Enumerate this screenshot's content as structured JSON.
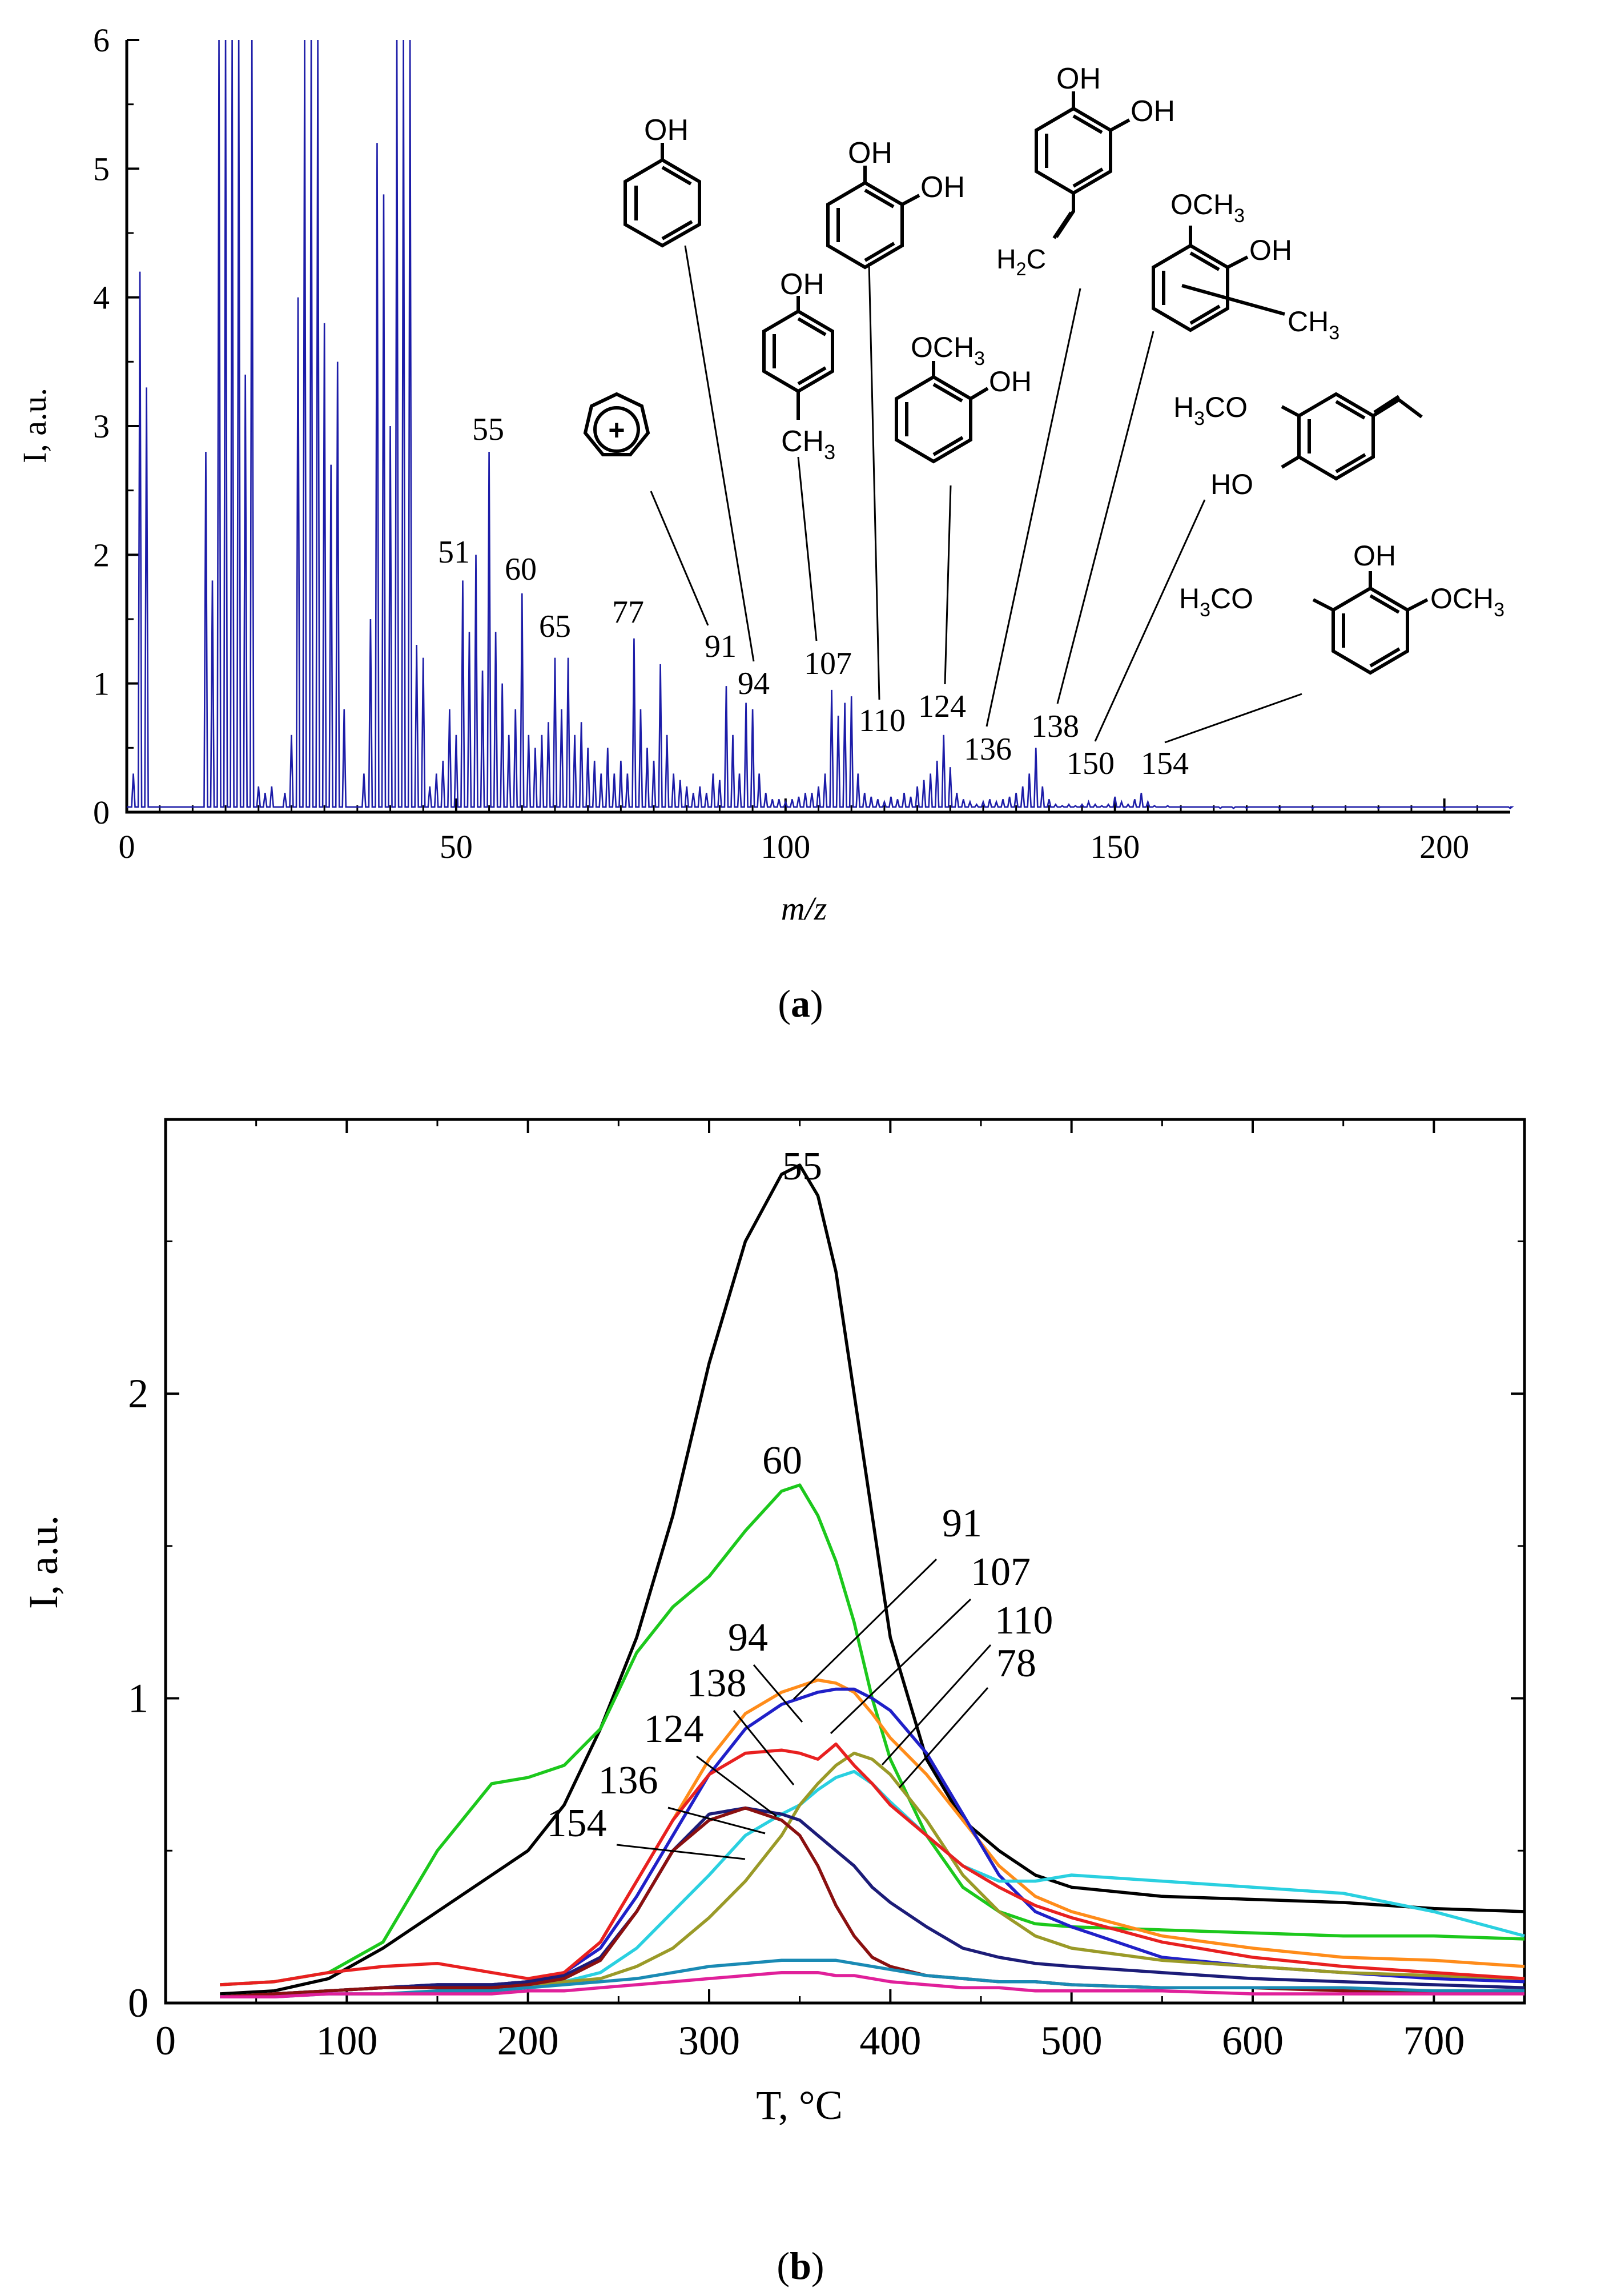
{
  "chart_data": [
    {
      "type": "line",
      "panel_label": "a",
      "xlabel": "m/z",
      "ylabel": "I, a.u.",
      "xlim": [
        0,
        210
      ],
      "ylim": [
        0,
        6
      ],
      "xticks": [
        "0",
        "50",
        "100",
        "150",
        "200"
      ],
      "yticks": [
        "0",
        "1",
        "2",
        "3",
        "4",
        "5",
        "6"
      ],
      "color": "#1c1ca8",
      "series": [
        {
          "name": "mass spectrum",
          "x": [
            1,
            2,
            3,
            12,
            13,
            14,
            15,
            16,
            17,
            18,
            19,
            20,
            21,
            22,
            24,
            25,
            26,
            27,
            28,
            29,
            30,
            31,
            32,
            33,
            36,
            37,
            38,
            39,
            40,
            41,
            42,
            43,
            44,
            45,
            46,
            47,
            48,
            49,
            50,
            51,
            52,
            53,
            54,
            55,
            56,
            57,
            58,
            59,
            60,
            61,
            62,
            63,
            64,
            65,
            66,
            67,
            68,
            69,
            70,
            71,
            72,
            73,
            74,
            75,
            76,
            77,
            78,
            79,
            80,
            81,
            82,
            83,
            84,
            85,
            86,
            87,
            88,
            89,
            90,
            91,
            92,
            93,
            94,
            95,
            96,
            97,
            98,
            99,
            100,
            101,
            102,
            103,
            104,
            105,
            106,
            107,
            108,
            109,
            110,
            111,
            112,
            113,
            114,
            115,
            116,
            117,
            118,
            119,
            120,
            121,
            122,
            123,
            124,
            125,
            126,
            127,
            128,
            129,
            130,
            131,
            132,
            133,
            134,
            135,
            136,
            137,
            138,
            139,
            140,
            141,
            142,
            143,
            144,
            145,
            146,
            147,
            148,
            149,
            150,
            151,
            152,
            153,
            154,
            155,
            156,
            157,
            158,
            159,
            160,
            162,
            164,
            166,
            168,
            170,
            175,
            180,
            190,
            200,
            210
          ],
          "y": [
            0.3,
            4.2,
            3.3,
            2.8,
            1.8,
            6.0,
            6.0,
            6.0,
            6.0,
            3.4,
            6.0,
            0.2,
            0.15,
            0.2,
            0.15,
            0.6,
            4.0,
            6.0,
            6.0,
            6.0,
            3.8,
            2.7,
            3.5,
            0.8,
            0.3,
            1.5,
            5.2,
            4.8,
            3.0,
            6.0,
            6.0,
            6.0,
            1.3,
            1.2,
            0.2,
            0.3,
            0.4,
            0.8,
            0.6,
            1.8,
            1.4,
            2.0,
            1.1,
            2.8,
            1.4,
            1.0,
            0.6,
            0.8,
            1.7,
            0.6,
            0.5,
            0.6,
            0.7,
            1.2,
            0.8,
            1.2,
            0.6,
            0.7,
            0.5,
            0.4,
            0.3,
            0.5,
            0.3,
            0.4,
            0.3,
            1.35,
            0.8,
            0.5,
            0.4,
            1.15,
            0.6,
            0.3,
            0.25,
            0.2,
            0.15,
            0.2,
            0.15,
            0.3,
            0.25,
            0.98,
            0.6,
            0.3,
            0.85,
            0.8,
            0.3,
            0.15,
            0.1,
            0.1,
            0.08,
            0.1,
            0.12,
            0.15,
            0.15,
            0.2,
            0.3,
            0.95,
            0.75,
            0.85,
            0.9,
            0.3,
            0.15,
            0.12,
            0.1,
            0.08,
            0.12,
            0.1,
            0.15,
            0.12,
            0.2,
            0.25,
            0.3,
            0.4,
            0.6,
            0.35,
            0.15,
            0.1,
            0.08,
            0.06,
            0.08,
            0.1,
            0.08,
            0.1,
            0.12,
            0.15,
            0.2,
            0.3,
            0.5,
            0.2,
            0.1,
            0.06,
            0.05,
            0.06,
            0.05,
            0.06,
            0.08,
            0.06,
            0.05,
            0.06,
            0.12,
            0.08,
            0.06,
            0.1,
            0.15,
            0.08,
            0.05,
            0.04,
            0.05,
            0.04,
            0.04,
            0.04,
            0.04,
            0.03,
            0.03,
            0.03,
            0.03,
            0.03,
            0.03,
            0.03,
            0.03
          ]
        }
      ],
      "peak_labels": [
        "55",
        "51",
        "60",
        "65",
        "77",
        "91",
        "94",
        "107",
        "110",
        "124",
        "136",
        "138",
        "150",
        "154"
      ],
      "structure_text": [
        "OH",
        "OCH",
        "3",
        "H",
        "2",
        "C",
        "CO",
        "HO"
      ]
    },
    {
      "type": "line",
      "panel_label": "b",
      "xlabel": "T, °C",
      "ylabel": "I, a.u.",
      "xlim": [
        0,
        750
      ],
      "ylim": [
        0,
        2.9
      ],
      "xticks": [
        "0",
        "100",
        "200",
        "300",
        "400",
        "500",
        "600",
        "700"
      ],
      "yticks": [
        "0",
        "1",
        "2"
      ],
      "x": [
        30,
        60,
        90,
        120,
        150,
        180,
        200,
        220,
        240,
        260,
        280,
        300,
        320,
        340,
        350,
        360,
        370,
        380,
        390,
        400,
        420,
        440,
        460,
        480,
        500,
        550,
        600,
        650,
        700,
        750
      ],
      "series": [
        {
          "name": "55",
          "color": "#000000",
          "values": [
            0.03,
            0.04,
            0.08,
            0.18,
            0.3,
            0.42,
            0.5,
            0.65,
            0.9,
            1.2,
            1.6,
            2.1,
            2.5,
            2.72,
            2.75,
            2.65,
            2.4,
            2.0,
            1.6,
            1.2,
            0.8,
            0.6,
            0.5,
            0.42,
            0.38,
            0.35,
            0.34,
            0.33,
            0.31,
            0.3
          ]
        },
        {
          "name": "60",
          "color": "#1cc81c",
          "values": [
            0.06,
            0.07,
            0.1,
            0.2,
            0.5,
            0.72,
            0.74,
            0.78,
            0.9,
            1.15,
            1.3,
            1.4,
            1.55,
            1.68,
            1.7,
            1.6,
            1.45,
            1.25,
            1.0,
            0.8,
            0.55,
            0.38,
            0.3,
            0.26,
            0.25,
            0.24,
            0.23,
            0.22,
            0.22,
            0.21
          ]
        },
        {
          "name": "91",
          "color": "#ff8c1a",
          "values": [
            0.02,
            0.03,
            0.04,
            0.05,
            0.06,
            0.06,
            0.07,
            0.1,
            0.2,
            0.4,
            0.6,
            0.8,
            0.95,
            1.02,
            1.04,
            1.06,
            1.05,
            1.02,
            0.95,
            0.87,
            0.75,
            0.6,
            0.45,
            0.35,
            0.3,
            0.22,
            0.18,
            0.15,
            0.14,
            0.12
          ]
        },
        {
          "name": "107",
          "color": "#2020c8",
          "values": [
            0.02,
            0.03,
            0.04,
            0.05,
            0.06,
            0.06,
            0.07,
            0.1,
            0.18,
            0.35,
            0.55,
            0.75,
            0.9,
            0.98,
            1.0,
            1.02,
            1.03,
            1.03,
            1.0,
            0.96,
            0.82,
            0.62,
            0.42,
            0.3,
            0.25,
            0.15,
            0.12,
            0.1,
            0.08,
            0.07
          ]
        },
        {
          "name": "110",
          "color": "#2ad0e0",
          "values": [
            0.02,
            0.03,
            0.04,
            0.05,
            0.05,
            0.05,
            0.06,
            0.07,
            0.1,
            0.18,
            0.3,
            0.42,
            0.55,
            0.62,
            0.65,
            0.7,
            0.74,
            0.76,
            0.72,
            0.66,
            0.55,
            0.45,
            0.4,
            0.4,
            0.42,
            0.4,
            0.38,
            0.36,
            0.3,
            0.22
          ]
        },
        {
          "name": "78",
          "color": "#9a9a28",
          "values": [
            0.02,
            0.03,
            0.04,
            0.05,
            0.05,
            0.05,
            0.06,
            0.07,
            0.08,
            0.12,
            0.18,
            0.28,
            0.4,
            0.55,
            0.65,
            0.72,
            0.78,
            0.82,
            0.8,
            0.75,
            0.6,
            0.42,
            0.3,
            0.22,
            0.18,
            0.14,
            0.12,
            0.1,
            0.09,
            0.08
          ]
        },
        {
          "name": "94",
          "color": "#e82020",
          "values": [
            0.06,
            0.07,
            0.1,
            0.12,
            0.13,
            0.1,
            0.08,
            0.1,
            0.2,
            0.4,
            0.6,
            0.75,
            0.82,
            0.83,
            0.82,
            0.8,
            0.85,
            0.78,
            0.72,
            0.65,
            0.55,
            0.45,
            0.38,
            0.32,
            0.28,
            0.2,
            0.15,
            0.12,
            0.1,
            0.08
          ]
        },
        {
          "name": "138",
          "color": "#1c1c78",
          "values": [
            0.02,
            0.03,
            0.04,
            0.05,
            0.06,
            0.06,
            0.07,
            0.09,
            0.15,
            0.3,
            0.5,
            0.62,
            0.64,
            0.62,
            0.6,
            0.55,
            0.5,
            0.45,
            0.38,
            0.33,
            0.25,
            0.18,
            0.15,
            0.13,
            0.12,
            0.1,
            0.08,
            0.07,
            0.06,
            0.05
          ]
        },
        {
          "name": "124",
          "color": "#8a1010",
          "values": [
            0.02,
            0.03,
            0.04,
            0.05,
            0.05,
            0.05,
            0.06,
            0.08,
            0.14,
            0.3,
            0.5,
            0.6,
            0.64,
            0.6,
            0.55,
            0.45,
            0.32,
            0.22,
            0.15,
            0.12,
            0.09,
            0.08,
            0.07,
            0.07,
            0.06,
            0.05,
            0.05,
            0.04,
            0.04,
            0.04
          ]
        },
        {
          "name": "136",
          "color": "#1a8ab4",
          "values": [
            0.02,
            0.02,
            0.03,
            0.03,
            0.04,
            0.04,
            0.05,
            0.06,
            0.07,
            0.08,
            0.1,
            0.12,
            0.13,
            0.14,
            0.14,
            0.14,
            0.14,
            0.13,
            0.12,
            0.11,
            0.09,
            0.08,
            0.07,
            0.07,
            0.06,
            0.05,
            0.05,
            0.05,
            0.04,
            0.04
          ]
        },
        {
          "name": "154",
          "color": "#e0209a",
          "values": [
            0.02,
            0.02,
            0.03,
            0.03,
            0.03,
            0.03,
            0.04,
            0.04,
            0.05,
            0.06,
            0.07,
            0.08,
            0.09,
            0.1,
            0.1,
            0.1,
            0.09,
            0.09,
            0.08,
            0.07,
            0.06,
            0.05,
            0.05,
            0.04,
            0.04,
            0.04,
            0.03,
            0.03,
            0.03,
            0.03
          ]
        }
      ],
      "curve_labels": [
        "55",
        "60",
        "91",
        "107",
        "110",
        "78",
        "94",
        "138",
        "124",
        "136",
        "154"
      ]
    }
  ]
}
